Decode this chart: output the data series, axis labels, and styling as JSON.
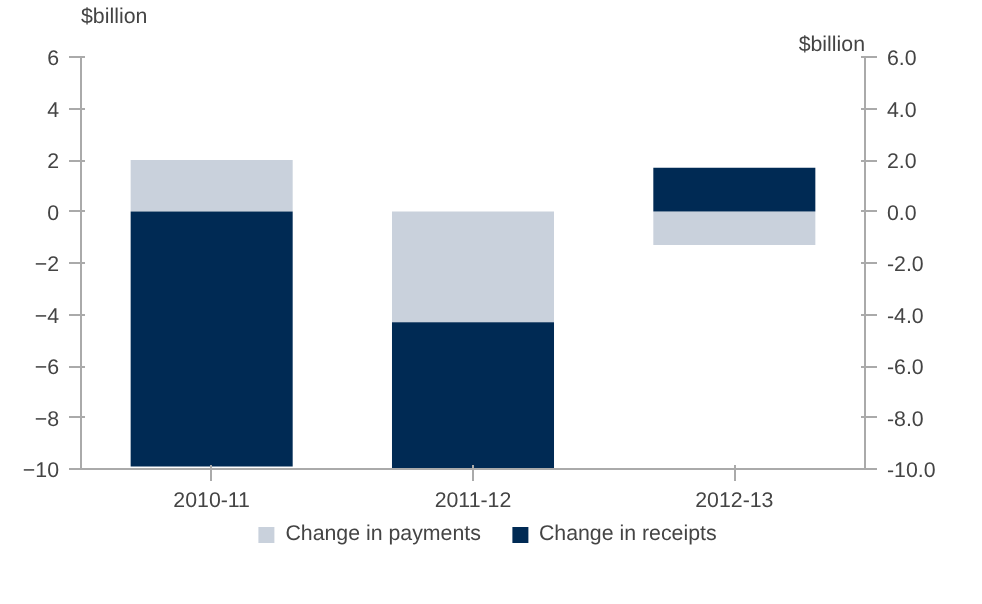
{
  "chart_data": {
    "type": "bar",
    "stacked": true,
    "ylabel": "$billion",
    "y2label": "$billion",
    "categories": [
      "2010-11",
      "2011-12",
      "2012-13"
    ],
    "series": [
      {
        "name": "Change in payments",
        "color": "#c9d1dc",
        "values": [
          2.0,
          -4.3,
          -1.3
        ]
      },
      {
        "name": "Change in receipts",
        "color": "#002a54",
        "values": [
          -9.9,
          -5.7,
          1.7
        ]
      }
    ],
    "ylim": [
      -10,
      6
    ],
    "yticks": [
      -10,
      -8,
      -6,
      -4,
      -2,
      0,
      2,
      4,
      6
    ],
    "y2lim": [
      -10,
      6
    ],
    "y2ticks": [
      {
        "value": -10,
        "label": "-10.0"
      },
      {
        "value": -8,
        "label": "-8.0"
      },
      {
        "value": -6,
        "label": "-6.0"
      },
      {
        "value": -4,
        "label": "-4.0"
      },
      {
        "value": -2,
        "label": "-2.0"
      },
      {
        "value": 0,
        "label": "0.0"
      },
      {
        "value": 2,
        "label": "2.0"
      },
      {
        "value": 4,
        "label": "4.0"
      },
      {
        "value": 6,
        "label": "6.0"
      }
    ],
    "grid": false,
    "legend": "bottom"
  }
}
